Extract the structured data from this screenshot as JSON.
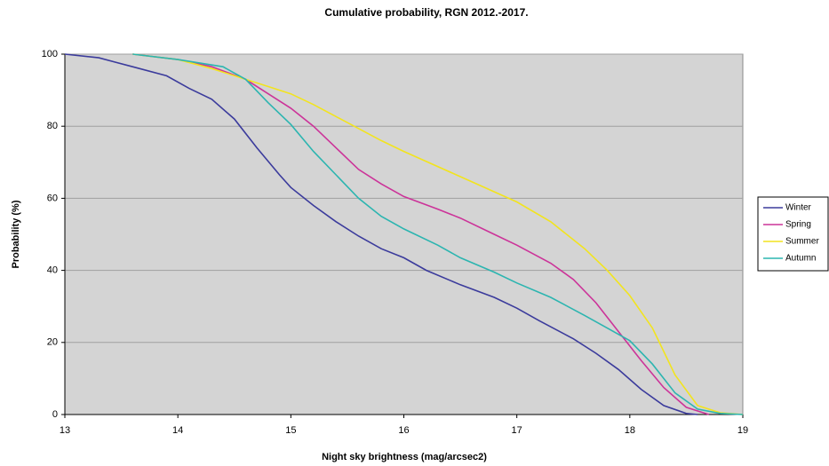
{
  "chart_data": {
    "type": "line",
    "title": "Cumulative probability, RGN 2012.-2017.",
    "x_label": "Night sky brightness (mag/arcsec2)",
    "y_label": "Probability (%)",
    "xlim": [
      13,
      19
    ],
    "xticks": [
      13,
      14,
      15,
      16,
      17,
      18,
      19
    ],
    "ylim": [
      0,
      100
    ],
    "yticks": [
      0,
      20,
      40,
      60,
      80,
      100
    ],
    "grid": true,
    "legend": "right",
    "series": [
      {
        "name": "Winter",
        "color": "#3b3b9c",
        "x": [
          13,
          13.3,
          13.6,
          13.9,
          14.1,
          14.3,
          14.5,
          14.7,
          14.9,
          15.0,
          15.2,
          15.4,
          15.6,
          15.8,
          16.0,
          16.2,
          16.5,
          16.8,
          17.0,
          17.2,
          17.5,
          17.7,
          17.9,
          18.1,
          18.3,
          18.5,
          18.6
        ],
        "values": [
          100,
          99,
          96.5,
          94,
          90.5,
          87.5,
          82,
          74,
          66.5,
          63,
          58,
          53.5,
          49.5,
          46,
          43.5,
          40,
          36,
          32.5,
          29.5,
          26,
          21,
          17,
          12.5,
          7,
          2.5,
          0.3,
          0
        ]
      },
      {
        "name": "Spring",
        "color": "#cc3399",
        "x": [
          13.6,
          14.0,
          14.3,
          14.6,
          14.8,
          15.0,
          15.2,
          15.4,
          15.6,
          15.8,
          16.0,
          16.3,
          16.5,
          16.8,
          17.0,
          17.3,
          17.5,
          17.7,
          17.9,
          18.1,
          18.3,
          18.5,
          18.7
        ],
        "values": [
          100,
          98.5,
          96.5,
          93,
          89,
          85,
          80,
          74,
          68,
          64,
          60.5,
          57,
          54.5,
          50,
          47,
          42,
          37.5,
          31,
          23,
          15,
          7.5,
          2,
          0
        ]
      },
      {
        "name": "Summer",
        "color": "#f2e41e",
        "x": [
          13.6,
          14.0,
          14.3,
          14.6,
          14.8,
          15.0,
          15.2,
          15.5,
          15.8,
          16.0,
          16.5,
          17.0,
          17.3,
          17.6,
          17.8,
          18.0,
          18.2,
          18.4,
          18.6,
          18.8,
          19.0
        ],
        "values": [
          100,
          98.5,
          96,
          93,
          91,
          89,
          86,
          81,
          76,
          73,
          66,
          59,
          53.5,
          46,
          40,
          33,
          24,
          11,
          2.5,
          0.5,
          0
        ]
      },
      {
        "name": "Autumn",
        "color": "#2cb5b0",
        "x": [
          13.6,
          14.0,
          14.4,
          14.6,
          14.8,
          15.0,
          15.2,
          15.4,
          15.6,
          15.8,
          16.0,
          16.3,
          16.5,
          16.8,
          17.0,
          17.3,
          17.6,
          17.8,
          18.0,
          18.2,
          18.4,
          18.6,
          18.8,
          19.0
        ],
        "values": [
          100,
          98.5,
          96.5,
          93,
          86.5,
          80.5,
          73,
          66.5,
          60,
          55,
          51.5,
          47,
          43.5,
          39.5,
          36.5,
          32.5,
          27.5,
          24,
          20.5,
          14,
          6,
          1.5,
          0.3,
          0
        ]
      }
    ]
  }
}
